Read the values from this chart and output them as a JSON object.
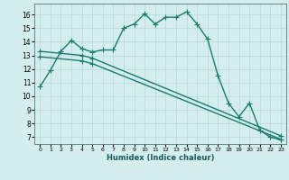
{
  "title": "",
  "xlabel": "Humidex (Indice chaleur)",
  "bg_color": "#d4eeee",
  "grid_color": "#b8d8d8",
  "line_color": "#1a7a6e",
  "xlim": [
    -0.5,
    23.5
  ],
  "ylim": [
    6.5,
    16.8
  ],
  "xticks": [
    0,
    1,
    2,
    3,
    4,
    5,
    6,
    7,
    8,
    9,
    10,
    11,
    12,
    13,
    14,
    15,
    16,
    17,
    18,
    19,
    20,
    21,
    22,
    23
  ],
  "yticks": [
    7,
    8,
    9,
    10,
    11,
    12,
    13,
    14,
    15,
    16
  ],
  "main_x": [
    0,
    1,
    2,
    3,
    4,
    5,
    6,
    7,
    8,
    9,
    10,
    11,
    12,
    13,
    14,
    15,
    16,
    17,
    18,
    19,
    20,
    21,
    22,
    23
  ],
  "main_y": [
    10.7,
    11.9,
    13.3,
    14.1,
    13.5,
    13.25,
    13.4,
    13.4,
    15.0,
    15.3,
    16.05,
    15.3,
    15.8,
    15.8,
    16.2,
    15.3,
    14.2,
    11.5,
    9.5,
    8.5,
    9.5,
    7.5,
    7.0,
    6.8
  ],
  "line2_x": [
    0,
    4,
    5,
    23
  ],
  "line2_y": [
    13.3,
    13.0,
    12.8,
    7.1
  ],
  "line3_x": [
    0,
    4,
    5,
    23
  ],
  "line3_y": [
    12.9,
    12.6,
    12.4,
    6.85
  ],
  "marker_size": 4,
  "line_width": 1.0
}
